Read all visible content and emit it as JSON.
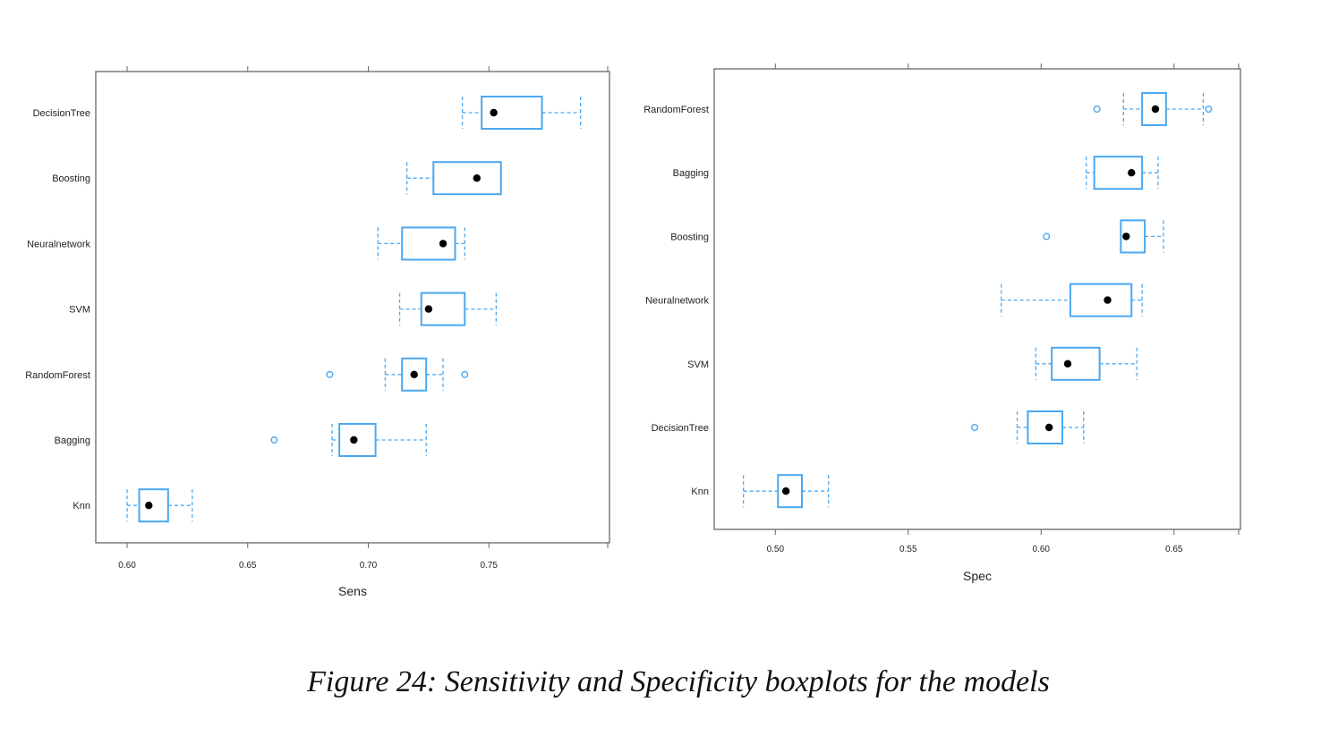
{
  "caption": "Figure 24: Sensitivity and Specificity boxplots for the models",
  "colors": {
    "box": "#4aa8f0",
    "median_dot": "#000000",
    "frame": "#666666",
    "text": "#222222"
  },
  "chart_data": [
    {
      "type": "boxplot",
      "orientation": "horizontal",
      "xlabel": "Sens",
      "ylabel": "",
      "xlim": [
        0.587,
        0.8
      ],
      "xticks": [
        0.6,
        0.65,
        0.7,
        0.75
      ],
      "tick_labels": [
        "0.60",
        "0.65",
        "0.70",
        "0.75"
      ],
      "grid": false,
      "categories": [
        "DecisionTree",
        "Boosting",
        "Neuralnetwork",
        "SVM",
        "RandomForest",
        "Bagging",
        "Knn"
      ],
      "boxes": [
        {
          "name": "DecisionTree",
          "whisker_low": 0.739,
          "q1": 0.747,
          "median": 0.752,
          "q3": 0.772,
          "whisker_high": 0.788,
          "outliers": []
        },
        {
          "name": "Boosting",
          "whisker_low": 0.716,
          "q1": 0.727,
          "median": 0.745,
          "q3": 0.755,
          "whisker_high": 0.755,
          "outliers": []
        },
        {
          "name": "Neuralnetwork",
          "whisker_low": 0.704,
          "q1": 0.714,
          "median": 0.731,
          "q3": 0.736,
          "whisker_high": 0.74,
          "outliers": []
        },
        {
          "name": "SVM",
          "whisker_low": 0.713,
          "q1": 0.722,
          "median": 0.725,
          "q3": 0.74,
          "whisker_high": 0.753,
          "outliers": []
        },
        {
          "name": "RandomForest",
          "whisker_low": 0.707,
          "q1": 0.714,
          "median": 0.719,
          "q3": 0.724,
          "whisker_high": 0.731,
          "outliers": [
            0.684,
            0.74
          ]
        },
        {
          "name": "Bagging",
          "whisker_low": 0.685,
          "q1": 0.688,
          "median": 0.694,
          "q3": 0.703,
          "whisker_high": 0.724,
          "outliers": [
            0.661
          ]
        },
        {
          "name": "Knn",
          "whisker_low": 0.6,
          "q1": 0.605,
          "median": 0.609,
          "q3": 0.617,
          "whisker_high": 0.627,
          "outliers": []
        }
      ]
    },
    {
      "type": "boxplot",
      "orientation": "horizontal",
      "xlabel": "Spec",
      "ylabel": "",
      "xlim": [
        0.477,
        0.675
      ],
      "xticks": [
        0.5,
        0.55,
        0.6,
        0.65
      ],
      "tick_labels": [
        "0.50",
        "0.55",
        "0.60",
        "0.65"
      ],
      "grid": false,
      "categories": [
        "RandomForest",
        "Bagging",
        "Boosting",
        "Neuralnetwork",
        "SVM",
        "DecisionTree",
        "Knn"
      ],
      "boxes": [
        {
          "name": "RandomForest",
          "whisker_low": 0.631,
          "q1": 0.638,
          "median": 0.643,
          "q3": 0.647,
          "whisker_high": 0.661,
          "outliers": [
            0.621,
            0.663
          ]
        },
        {
          "name": "Bagging",
          "whisker_low": 0.617,
          "q1": 0.62,
          "median": 0.634,
          "q3": 0.638,
          "whisker_high": 0.644,
          "outliers": []
        },
        {
          "name": "Boosting",
          "whisker_low": 0.63,
          "q1": 0.63,
          "median": 0.632,
          "q3": 0.639,
          "whisker_high": 0.646,
          "outliers": [
            0.602
          ]
        },
        {
          "name": "Neuralnetwork",
          "whisker_low": 0.585,
          "q1": 0.611,
          "median": 0.625,
          "q3": 0.634,
          "whisker_high": 0.638,
          "outliers": []
        },
        {
          "name": "SVM",
          "whisker_low": 0.598,
          "q1": 0.604,
          "median": 0.61,
          "q3": 0.622,
          "whisker_high": 0.636,
          "outliers": []
        },
        {
          "name": "DecisionTree",
          "whisker_low": 0.591,
          "q1": 0.595,
          "median": 0.603,
          "q3": 0.608,
          "whisker_high": 0.616,
          "outliers": [
            0.575
          ]
        },
        {
          "name": "Knn",
          "whisker_low": 0.488,
          "q1": 0.501,
          "median": 0.504,
          "q3": 0.51,
          "whisker_high": 0.52,
          "outliers": []
        }
      ]
    }
  ]
}
